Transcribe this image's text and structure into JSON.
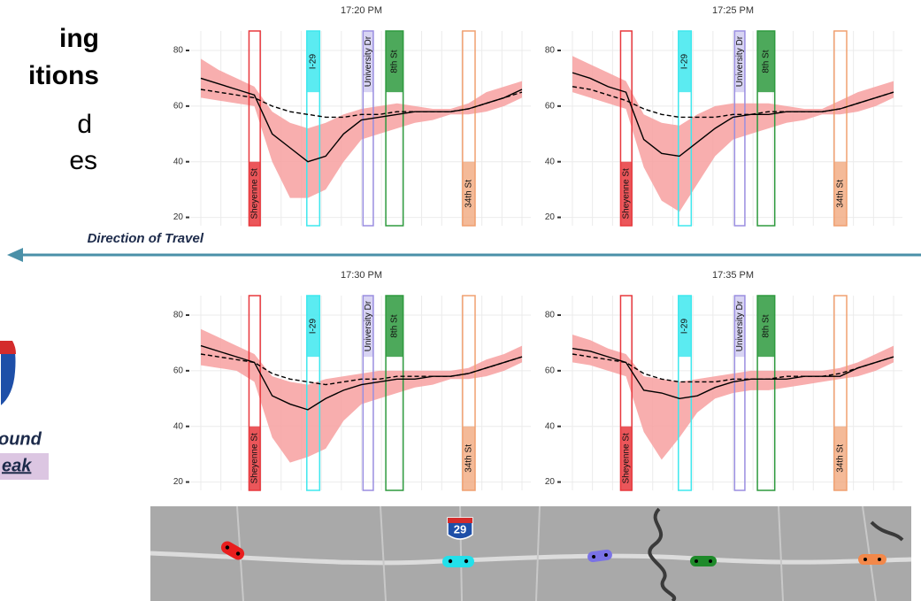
{
  "slide": {
    "title_lines": [
      "ing",
      "itions",
      "d",
      "es"
    ],
    "direction": "Direction of Travel",
    "route_lines": [
      "ound",
      "eak"
    ],
    "map_shield": "29"
  },
  "chart_data": [
    {
      "type": "line",
      "title": "17:20 PM",
      "categories": [
        null,
        null,
        null,
        null,
        null,
        null,
        null,
        null,
        null,
        null,
        null,
        null,
        null,
        null,
        null,
        null,
        null,
        null,
        null
      ],
      "series": [
        {
          "color": "#000000",
          "values": [
            70,
            68,
            66,
            64,
            50,
            45,
            40,
            42,
            50,
            55,
            56,
            57,
            58,
            58,
            58,
            59,
            61,
            63,
            66
          ]
        },
        {
          "color": "#000000",
          "dash": true,
          "values": [
            66,
            65,
            64,
            63,
            60,
            58,
            57,
            56,
            56,
            57,
            57,
            58,
            58,
            58,
            58,
            59,
            61,
            63,
            65
          ]
        }
      ],
      "band": {
        "color": "#f7a0a0",
        "upper": [
          77,
          73,
          70,
          67,
          58,
          54,
          52,
          54,
          57,
          59,
          60,
          61,
          60,
          59,
          59,
          61,
          65,
          67,
          69
        ],
        "lower": [
          63,
          62,
          61,
          60,
          40,
          27,
          27,
          30,
          40,
          48,
          50,
          52,
          54,
          55,
          57,
          57,
          58,
          60,
          63
        ]
      },
      "annotations": [
        {
          "label": "Sheyenne St",
          "color": "#e8383d"
        },
        {
          "label": "I-29",
          "color": "#3ee8ee"
        },
        {
          "label": "University Dr",
          "color": "#9a8ee0"
        },
        {
          "label": "8th St",
          "color": "#2e9a3e"
        },
        {
          "label": "34th St",
          "color": "#f0a070"
        }
      ],
      "ylim": [
        17,
        87
      ],
      "yticks": [
        20,
        40,
        60,
        80
      ],
      "grid": true
    },
    {
      "type": "line",
      "title": "17:25 PM",
      "categories": [
        null,
        null,
        null,
        null,
        null,
        null,
        null,
        null,
        null,
        null,
        null,
        null,
        null,
        null,
        null,
        null,
        null,
        null,
        null
      ],
      "series": [
        {
          "color": "#000000",
          "values": [
            72,
            70,
            67,
            65,
            48,
            43,
            42,
            47,
            52,
            56,
            57,
            57,
            58,
            58,
            58,
            59,
            61,
            63,
            65
          ]
        },
        {
          "color": "#000000",
          "dash": true,
          "values": [
            67,
            66,
            64,
            62,
            59,
            57,
            56,
            56,
            56,
            57,
            57,
            58,
            58,
            58,
            58,
            59,
            61,
            63,
            65
          ]
        }
      ],
      "band": {
        "color": "#f7a0a0",
        "upper": [
          78,
          75,
          72,
          69,
          57,
          54,
          53,
          57,
          60,
          61,
          61,
          61,
          60,
          59,
          59,
          62,
          65,
          67,
          69
        ],
        "lower": [
          65,
          63,
          61,
          59,
          38,
          26,
          22,
          32,
          42,
          48,
          50,
          52,
          54,
          55,
          57,
          57,
          58,
          60,
          63
        ]
      },
      "annotations": [
        {
          "label": "Sheyenne St",
          "color": "#e8383d"
        },
        {
          "label": "I-29",
          "color": "#3ee8ee"
        },
        {
          "label": "University Dr",
          "color": "#9a8ee0"
        },
        {
          "label": "8th St",
          "color": "#2e9a3e"
        },
        {
          "label": "34th St",
          "color": "#f0a070"
        }
      ],
      "ylim": [
        17,
        87
      ],
      "yticks": [
        20,
        40,
        60,
        80
      ],
      "grid": true
    },
    {
      "type": "line",
      "title": "17:30 PM",
      "categories": [
        null,
        null,
        null,
        null,
        null,
        null,
        null,
        null,
        null,
        null,
        null,
        null,
        null,
        null,
        null,
        null,
        null,
        null,
        null
      ],
      "series": [
        {
          "color": "#000000",
          "values": [
            69,
            67,
            65,
            63,
            51,
            48,
            46,
            50,
            53,
            55,
            56,
            57,
            57,
            58,
            58,
            59,
            61,
            63,
            65
          ]
        },
        {
          "color": "#000000",
          "dash": true,
          "values": [
            66,
            65,
            64,
            63,
            59,
            57,
            56,
            55,
            56,
            57,
            57,
            58,
            58,
            58,
            58,
            59,
            61,
            63,
            65
          ]
        }
      ],
      "band": {
        "color": "#f7a0a0",
        "upper": [
          75,
          72,
          69,
          66,
          58,
          56,
          55,
          57,
          58,
          59,
          60,
          60,
          60,
          60,
          60,
          61,
          64,
          66,
          69
        ],
        "lower": [
          62,
          61,
          60,
          56,
          36,
          27,
          29,
          32,
          42,
          48,
          50,
          52,
          54,
          55,
          57,
          57,
          58,
          60,
          63
        ]
      },
      "annotations": [
        {
          "label": "Sheyenne St",
          "color": "#e8383d"
        },
        {
          "label": "I-29",
          "color": "#3ee8ee"
        },
        {
          "label": "University Dr",
          "color": "#9a8ee0"
        },
        {
          "label": "8th St",
          "color": "#2e9a3e"
        },
        {
          "label": "34th St",
          "color": "#f0a070"
        }
      ],
      "ylim": [
        17,
        87
      ],
      "yticks": [
        20,
        40,
        60,
        80
      ],
      "grid": true
    },
    {
      "type": "line",
      "title": "17:35 PM",
      "categories": [
        null,
        null,
        null,
        null,
        null,
        null,
        null,
        null,
        null,
        null,
        null,
        null,
        null,
        null,
        null,
        null,
        null,
        null,
        null
      ],
      "series": [
        {
          "color": "#000000",
          "values": [
            68,
            67,
            65,
            63,
            53,
            52,
            50,
            51,
            54,
            56,
            57,
            57,
            57,
            58,
            58,
            58,
            61,
            63,
            65
          ]
        },
        {
          "color": "#000000",
          "dash": true,
          "values": [
            66,
            65,
            64,
            63,
            59,
            57,
            56,
            56,
            56,
            57,
            57,
            57,
            58,
            58,
            58,
            59,
            61,
            63,
            65
          ]
        }
      ],
      "band": {
        "color": "#f7a0a0",
        "upper": [
          73,
          71,
          68,
          66,
          58,
          57,
          56,
          57,
          58,
          59,
          60,
          60,
          60,
          60,
          60,
          61,
          63,
          66,
          69
        ],
        "lower": [
          63,
          62,
          60,
          58,
          38,
          28,
          36,
          45,
          50,
          52,
          53,
          53,
          54,
          55,
          56,
          57,
          58,
          60,
          63
        ]
      },
      "annotations": [
        {
          "label": "Sheyenne St",
          "color": "#e8383d"
        },
        {
          "label": "I-29",
          "color": "#3ee8ee"
        },
        {
          "label": "University Dr",
          "color": "#9a8ee0"
        },
        {
          "label": "8th St",
          "color": "#2e9a3e"
        },
        {
          "label": "34th St",
          "color": "#f0a070"
        }
      ],
      "ylim": [
        17,
        87
      ],
      "yticks": [
        20,
        40,
        60,
        80
      ],
      "grid": true
    }
  ]
}
